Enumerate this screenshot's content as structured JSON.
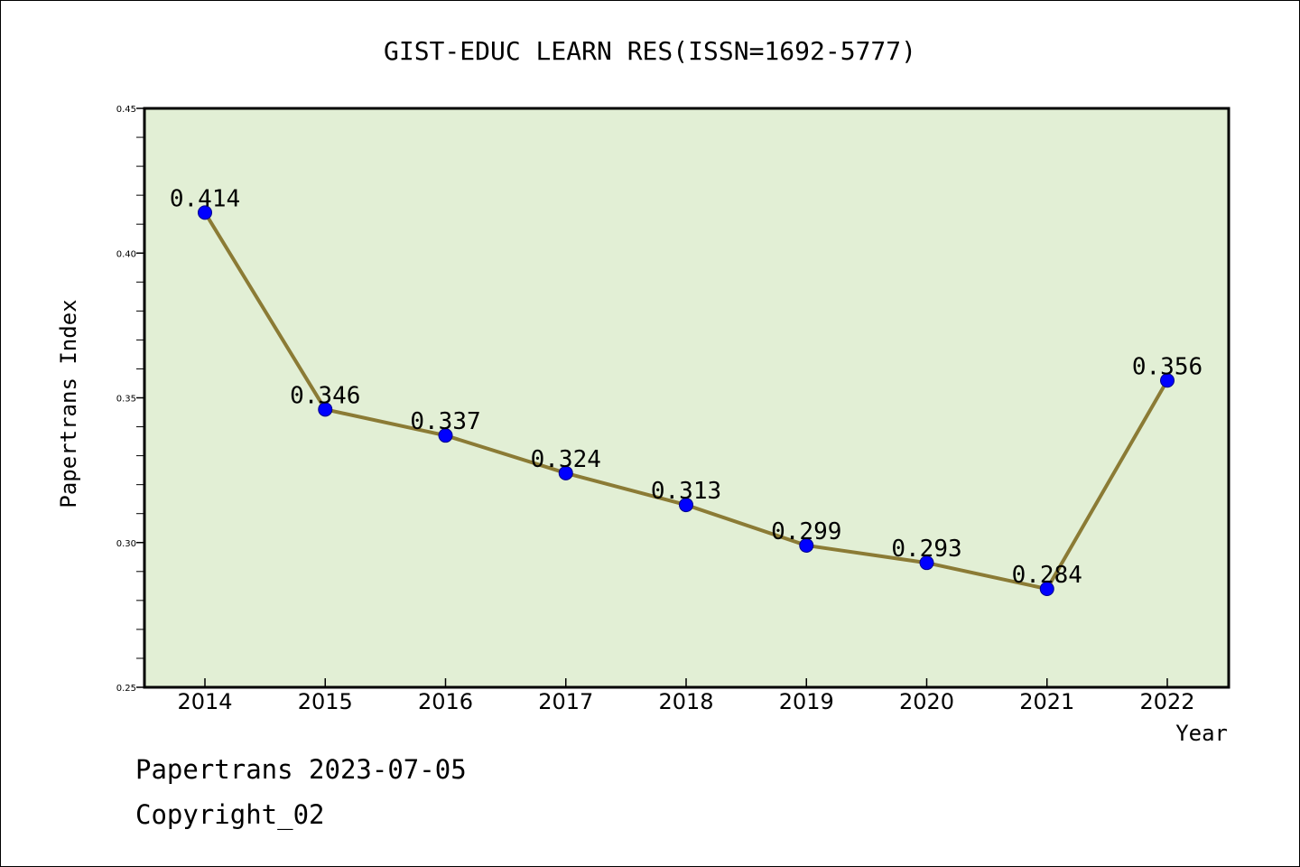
{
  "chart_data": {
    "type": "line",
    "title": "GIST-EDUC LEARN RES(ISSN=1692-5777)",
    "xlabel": "Year",
    "ylabel": "Papertrans Index",
    "x": [
      "2014",
      "2015",
      "2016",
      "2017",
      "2018",
      "2019",
      "2020",
      "2021",
      "2022"
    ],
    "series": [
      {
        "values": [
          0.414,
          0.346,
          0.337,
          0.324,
          0.313,
          0.299,
          0.293,
          0.284,
          0.356
        ],
        "labels": [
          "0.414",
          "0.346",
          "0.337",
          "0.324",
          "0.313",
          "0.299",
          "0.293",
          "0.284",
          "0.356"
        ]
      }
    ],
    "ylim": [
      0.25,
      0.45
    ],
    "yticks": [
      0.25,
      0.3,
      0.35,
      0.4,
      0.45
    ],
    "ytick_labels": [
      "0.25",
      "0.30",
      "0.35",
      "0.40",
      "0.45"
    ],
    "grid": false,
    "legend": "none"
  },
  "colors": {
    "plot_background": "#e2efd5",
    "line": "#8b7b35",
    "marker_fill": "#0000ff",
    "marker_edge": "#00008b",
    "axes": "#000000"
  },
  "footer": {
    "line1": "Papertrans 2023-07-05",
    "line2": "Copyright_02"
  }
}
